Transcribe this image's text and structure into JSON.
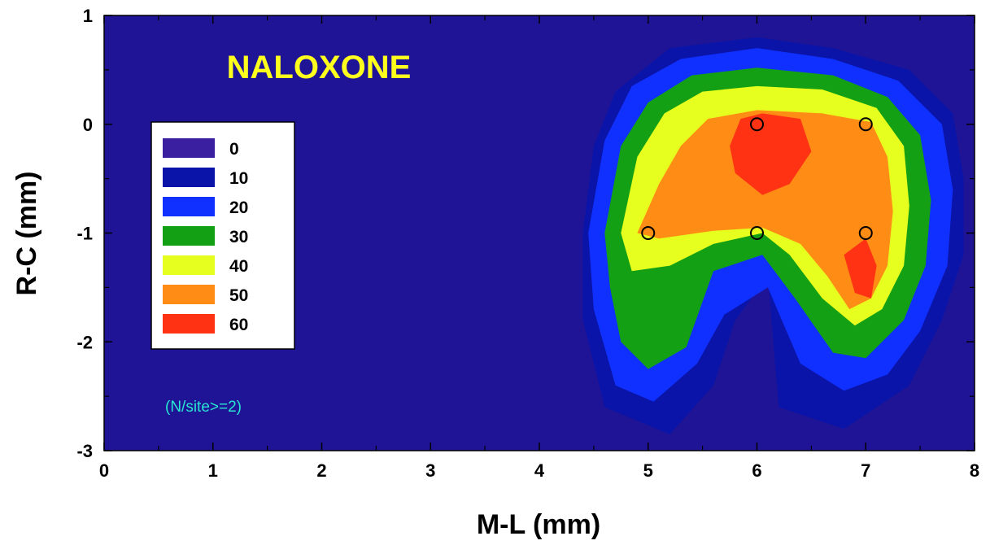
{
  "chart_data": {
    "type": "heatmap",
    "title": "NALOXONE",
    "annotation": "(N/site>=2)",
    "xlabel": "M-L  (mm)",
    "ylabel": "R-C  (mm)",
    "xlim": [
      0,
      8
    ],
    "ylim": [
      -3,
      1
    ],
    "x_ticks": [
      "0",
      "1",
      "2",
      "3",
      "4",
      "5",
      "6",
      "7",
      "8"
    ],
    "y_ticks": [
      "1",
      "0",
      "-1",
      "-2",
      "-3"
    ],
    "grid": false,
    "legend_position": "upper-left",
    "levels": [
      {
        "label": "0",
        "color": "#3a1fa0"
      },
      {
        "label": "10",
        "color": "#0a14a8"
      },
      {
        "label": "20",
        "color": "#1030ff"
      },
      {
        "label": "30",
        "color": "#14a014"
      },
      {
        "label": "40",
        "color": "#e6ff1e"
      },
      {
        "label": "50",
        "color": "#ff8c14"
      },
      {
        "label": "60",
        "color": "#ff3214"
      }
    ],
    "background_color": "#1f1496",
    "title_color": "#ffff1e",
    "annotation_color": "#28e6d2",
    "sites": [
      {
        "x": 5,
        "y": -1
      },
      {
        "x": 6,
        "y": 0
      },
      {
        "x": 6,
        "y": -1
      },
      {
        "x": 7,
        "y": 0
      },
      {
        "x": 7,
        "y": -1
      }
    ],
    "contours": [
      {
        "level": "10",
        "color": "#0a14a8",
        "points": [
          [
            4.4,
            -1
          ],
          [
            4.5,
            -0.2
          ],
          [
            4.7,
            0.3
          ],
          [
            5.2,
            0.7
          ],
          [
            6,
            0.8
          ],
          [
            6.7,
            0.7
          ],
          [
            7.4,
            0.5
          ],
          [
            7.8,
            0.1
          ],
          [
            7.9,
            -0.5
          ],
          [
            7.9,
            -1.2
          ],
          [
            7.7,
            -1.8
          ],
          [
            7.4,
            -2.4
          ],
          [
            6.8,
            -2.8
          ],
          [
            6.2,
            -2.6
          ],
          [
            6.1,
            -1.4
          ],
          [
            5.8,
            -1.8
          ],
          [
            5.6,
            -2.4
          ],
          [
            5.2,
            -2.85
          ],
          [
            4.6,
            -2.6
          ],
          [
            4.4,
            -1.8
          ]
        ]
      },
      {
        "level": "20",
        "color": "#1030ff",
        "points": [
          [
            4.45,
            -1
          ],
          [
            4.6,
            -0.15
          ],
          [
            4.85,
            0.35
          ],
          [
            5.3,
            0.6
          ],
          [
            6,
            0.7
          ],
          [
            6.7,
            0.6
          ],
          [
            7.3,
            0.4
          ],
          [
            7.7,
            0
          ],
          [
            7.8,
            -0.6
          ],
          [
            7.75,
            -1.3
          ],
          [
            7.5,
            -1.9
          ],
          [
            7.2,
            -2.3
          ],
          [
            6.8,
            -2.45
          ],
          [
            6.4,
            -2.2
          ],
          [
            6.1,
            -1.5
          ],
          [
            5.7,
            -1.75
          ],
          [
            5.45,
            -2.2
          ],
          [
            5.05,
            -2.55
          ],
          [
            4.7,
            -2.4
          ],
          [
            4.5,
            -1.7
          ]
        ]
      },
      {
        "level": "30",
        "color": "#14a014",
        "points": [
          [
            4.6,
            -1
          ],
          [
            4.75,
            -0.2
          ],
          [
            5,
            0.2
          ],
          [
            5.4,
            0.45
          ],
          [
            6,
            0.52
          ],
          [
            6.7,
            0.45
          ],
          [
            7.2,
            0.25
          ],
          [
            7.5,
            -0.1
          ],
          [
            7.6,
            -0.7
          ],
          [
            7.55,
            -1.3
          ],
          [
            7.35,
            -1.8
          ],
          [
            7,
            -2.15
          ],
          [
            6.7,
            -2.1
          ],
          [
            6.35,
            -1.6
          ],
          [
            6.05,
            -1.2
          ],
          [
            5.6,
            -1.35
          ],
          [
            5.35,
            -2.05
          ],
          [
            5,
            -2.25
          ],
          [
            4.75,
            -2.0
          ],
          [
            4.65,
            -1.5
          ]
        ]
      },
      {
        "level": "40",
        "color": "#e6ff1e",
        "points": [
          [
            4.75,
            -1
          ],
          [
            4.9,
            -0.3
          ],
          [
            5.15,
            0.1
          ],
          [
            5.5,
            0.3
          ],
          [
            6,
            0.35
          ],
          [
            6.6,
            0.32
          ],
          [
            7.1,
            0.15
          ],
          [
            7.35,
            -0.2
          ],
          [
            7.4,
            -0.75
          ],
          [
            7.35,
            -1.3
          ],
          [
            7.15,
            -1.7
          ],
          [
            6.9,
            -1.85
          ],
          [
            6.6,
            -1.6
          ],
          [
            6.3,
            -1.2
          ],
          [
            6.05,
            -1.0
          ],
          [
            5.6,
            -1.1
          ],
          [
            5.2,
            -1.3
          ],
          [
            4.85,
            -1.35
          ]
        ]
      },
      {
        "level": "50",
        "color": "#ff8c14",
        "points": [
          [
            4.9,
            -1
          ],
          [
            5.1,
            -0.55
          ],
          [
            5.3,
            -0.2
          ],
          [
            5.55,
            0.05
          ],
          [
            6,
            0.13
          ],
          [
            6.6,
            0.1
          ],
          [
            7.05,
            0.02
          ],
          [
            7.2,
            -0.3
          ],
          [
            7.25,
            -0.8
          ],
          [
            7.2,
            -1.3
          ],
          [
            7.05,
            -1.6
          ],
          [
            6.85,
            -1.7
          ],
          [
            6.65,
            -1.4
          ],
          [
            6.4,
            -1.1
          ],
          [
            6.05,
            -0.95
          ],
          [
            5.6,
            -0.98
          ],
          [
            5.1,
            -1.05
          ]
        ]
      },
      {
        "level": "60",
        "color": "#ff3214",
        "points": [
          [
            5.75,
            -0.2
          ],
          [
            5.85,
            0.05
          ],
          [
            6.05,
            0.1
          ],
          [
            6.4,
            0.05
          ],
          [
            6.5,
            -0.25
          ],
          [
            6.3,
            -0.55
          ],
          [
            6.05,
            -0.65
          ],
          [
            5.8,
            -0.45
          ]
        ]
      },
      {
        "level": "60",
        "color": "#ff3214",
        "points": [
          [
            6.8,
            -1.2
          ],
          [
            7.0,
            -1.05
          ],
          [
            7.1,
            -1.3
          ],
          [
            7.05,
            -1.6
          ],
          [
            6.9,
            -1.55
          ]
        ]
      }
    ]
  }
}
